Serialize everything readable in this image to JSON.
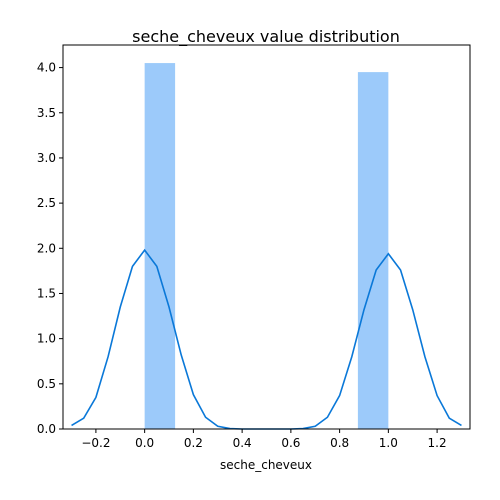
{
  "chart_data": {
    "type": "bar",
    "title": "seche_cheveux value distribution",
    "xlabel": "seche_cheveux",
    "ylabel": "",
    "xlim": [
      -0.335,
      1.335
    ],
    "ylim": [
      0,
      4.25
    ],
    "xticks": [
      -0.2,
      0.0,
      0.2,
      0.4,
      0.6,
      0.8,
      1.0,
      1.2
    ],
    "xtick_labels": [
      "−0.2",
      "0.0",
      "0.2",
      "0.4",
      "0.6",
      "0.8",
      "1.0",
      "1.2"
    ],
    "yticks": [
      0.0,
      0.5,
      1.0,
      1.5,
      2.0,
      2.5,
      3.0,
      3.5,
      4.0
    ],
    "ytick_labels": [
      "0.0",
      "0.5",
      "1.0",
      "1.5",
      "2.0",
      "2.5",
      "3.0",
      "3.5",
      "4.0"
    ],
    "grid": false,
    "histogram": {
      "color": "#9ccafa",
      "bins": [
        {
          "x0": 0.0,
          "x1": 0.125,
          "value": 4.05
        },
        {
          "x0": 0.875,
          "x1": 1.0,
          "value": 3.95
        }
      ]
    },
    "kde": {
      "color": "#0a78d8",
      "points": [
        [
          -0.3,
          0.04
        ],
        [
          -0.25,
          0.12
        ],
        [
          -0.2,
          0.35
        ],
        [
          -0.15,
          0.8
        ],
        [
          -0.1,
          1.35
        ],
        [
          -0.05,
          1.8
        ],
        [
          0.0,
          1.98
        ],
        [
          0.05,
          1.8
        ],
        [
          0.1,
          1.35
        ],
        [
          0.15,
          0.82
        ],
        [
          0.2,
          0.38
        ],
        [
          0.25,
          0.13
        ],
        [
          0.3,
          0.03
        ],
        [
          0.35,
          0.005
        ],
        [
          0.4,
          0.0
        ],
        [
          0.5,
          0.0
        ],
        [
          0.6,
          0.0
        ],
        [
          0.65,
          0.005
        ],
        [
          0.7,
          0.03
        ],
        [
          0.75,
          0.13
        ],
        [
          0.8,
          0.37
        ],
        [
          0.85,
          0.8
        ],
        [
          0.9,
          1.32
        ],
        [
          0.95,
          1.76
        ],
        [
          1.0,
          1.94
        ],
        [
          1.05,
          1.76
        ],
        [
          1.1,
          1.32
        ],
        [
          1.15,
          0.8
        ],
        [
          1.2,
          0.37
        ],
        [
          1.25,
          0.12
        ],
        [
          1.3,
          0.04
        ]
      ]
    }
  }
}
